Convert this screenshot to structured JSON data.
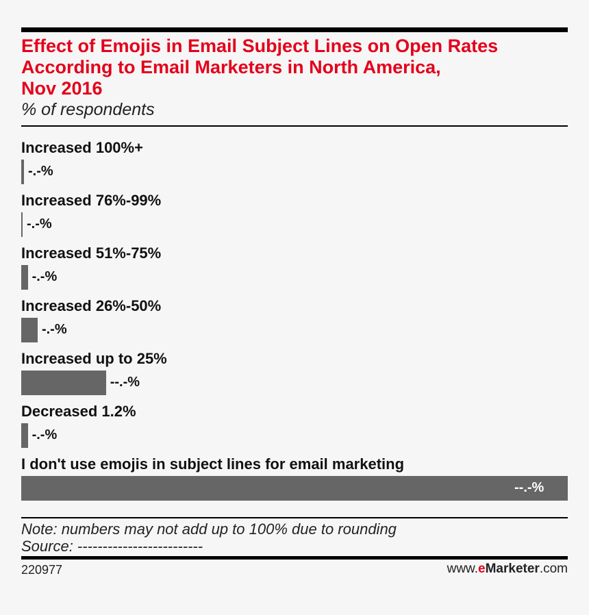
{
  "chart_data": {
    "type": "bar",
    "orientation": "horizontal",
    "title_lines": [
      "Effect of Emojis in Email Subject Lines on Open Rates",
      "According to Email Marketers in North America,",
      "Nov 2016"
    ],
    "subtitle": "% of respondents",
    "categories": [
      "Increased 100%+",
      "Increased 76%-99%",
      "Increased 51%-75%",
      "Increased 26%-50%",
      "Increased up to 25%",
      "Decreased 1.2%",
      "I don't use emojis in subject lines for email marketing"
    ],
    "value_labels": [
      "-.-%",
      "-.-%",
      "-.-%",
      "-.-%",
      "--.-%",
      "-.-%",
      "--.-%"
    ],
    "values": [
      0.5,
      0.2,
      1.2,
      3.0,
      15.5,
      1.2,
      100.0
    ],
    "xlim": [
      0,
      100
    ],
    "bar_color": "#666666",
    "title_color": "#e4001b",
    "note": "Note: numbers may not add up to 100% due to rounding",
    "source": "Source: -------------------------",
    "chart_id": "220977",
    "brand": {
      "prefix": "www.",
      "e": "e",
      "name": "Marketer",
      "suffix": ".com"
    }
  }
}
